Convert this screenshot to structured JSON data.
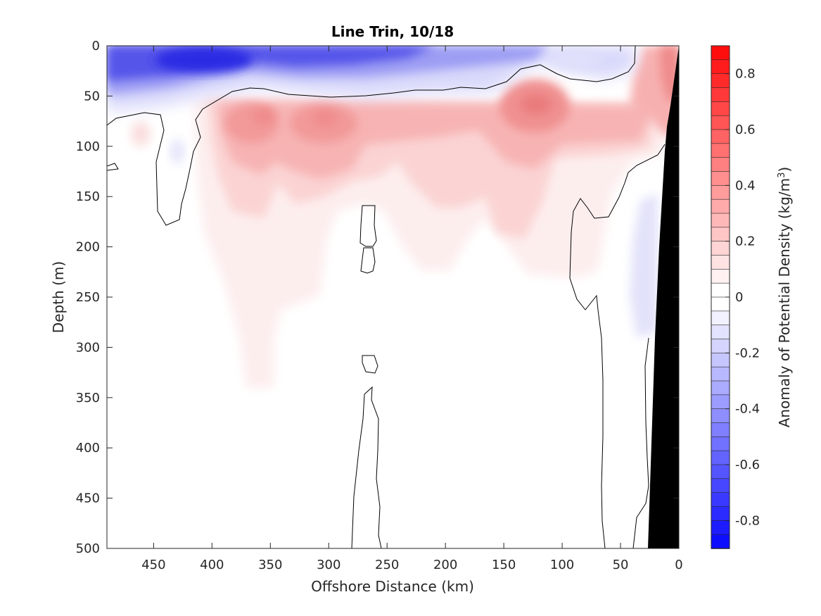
{
  "chart_data": {
    "type": "heatmap",
    "title": "Line Trin, 10/18",
    "xlabel": "Offshore Distance (km)",
    "ylabel": "Depth (m)",
    "colorbar_label_main": "Anomaly of Potential Density (kg/m",
    "colorbar_label_sup": "3",
    "colorbar_label_close": ")",
    "xlim": [
      490,
      0
    ],
    "ylim": [
      0,
      500
    ],
    "y_reversed": true,
    "x_reversed": true,
    "x_ticks": [
      450,
      400,
      350,
      300,
      250,
      200,
      150,
      100,
      50,
      0
    ],
    "y_ticks": [
      0,
      50,
      100,
      150,
      200,
      250,
      300,
      350,
      400,
      450,
      500
    ],
    "colorbar_ticks": [
      0.8,
      0.6,
      0.4,
      0.2,
      0,
      -0.2,
      -0.4,
      -0.6,
      -0.8
    ],
    "colorbar_range": [
      -0.9,
      0.9
    ],
    "colorbar_levels": 36,
    "colormap": {
      "negative": "#0000ff",
      "zero": "#ffffff",
      "positive": "#ff0000"
    },
    "features": [
      {
        "type": "surface_anomaly",
        "sign": "negative",
        "x_range": [
          490,
          30
        ],
        "depth_range": [
          0,
          60
        ],
        "peak_value": -0.7,
        "peak_x": 410,
        "peak_depth": 15
      },
      {
        "type": "subsurface_maxima",
        "sign": "positive",
        "centers": [
          {
            "x": 355,
            "depth": 75,
            "value": 0.4
          },
          {
            "x": 300,
            "depth": 80,
            "value": 0.4
          },
          {
            "x": 125,
            "depth": 60,
            "value": 0.45
          }
        ],
        "depth_range": [
          45,
          350
        ]
      },
      {
        "type": "coastal_positive",
        "x_range": [
          35,
          0
        ],
        "depth_range": [
          0,
          100
        ],
        "value": 0.4
      },
      {
        "type": "coastal_negative",
        "x_range": [
          45,
          20
        ],
        "depth_range": [
          150,
          290
        ],
        "value": -0.05
      }
    ],
    "zero_contours": true,
    "bathymetry": {
      "color": "#000000",
      "shelf_x_at_surface": 0,
      "shelf_x_at_500m": 25
    }
  }
}
